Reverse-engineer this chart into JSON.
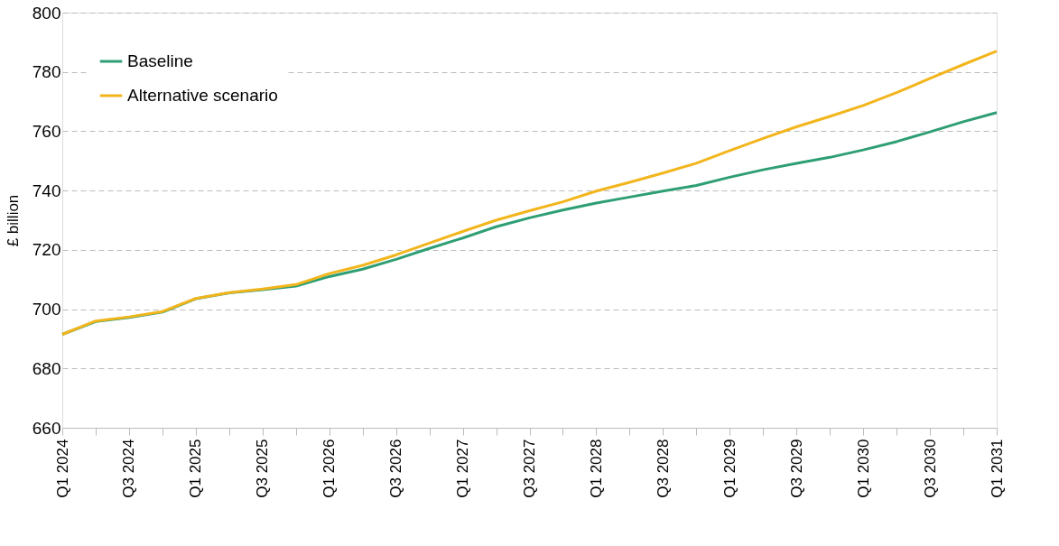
{
  "chart_data": {
    "type": "line",
    "ylabel": "£ billion",
    "categories": [
      "Q1 2024",
      null,
      "Q3 2024",
      null,
      "Q1 2025",
      null,
      "Q3 2025",
      null,
      "Q1 2026",
      null,
      "Q3 2026",
      null,
      "Q1 2027",
      null,
      "Q3 2027",
      null,
      "Q1 2028",
      null,
      "Q3 2028",
      null,
      "Q1 2029",
      null,
      "Q3 2029",
      null,
      "Q1 2030",
      null,
      "Q3 2030",
      null,
      "Q1 2031"
    ],
    "series": [
      {
        "name": "Baseline",
        "color": "#2e9e74",
        "values": [
          691.5,
          695.8,
          697.2,
          699.0,
          703.5,
          705.5,
          706.6,
          707.8,
          711.0,
          713.5,
          716.8,
          720.5,
          724.0,
          727.8,
          730.8,
          733.4,
          735.8,
          737.8,
          739.8,
          741.7,
          744.5,
          747.0,
          749.2,
          751.2,
          753.7,
          756.5,
          759.8,
          763.2,
          766.3
        ]
      },
      {
        "name": "Alternative scenario",
        "color": "#f2b51c",
        "values": [
          691.5,
          696.0,
          697.4,
          699.2,
          703.6,
          705.6,
          706.8,
          708.3,
          712.0,
          714.8,
          718.3,
          722.3,
          726.2,
          730.0,
          733.2,
          736.2,
          739.8,
          742.8,
          745.9,
          749.2,
          753.5,
          757.6,
          761.5,
          765.0,
          768.7,
          773.0,
          777.8,
          782.5,
          787.0
        ]
      }
    ],
    "ylim": [
      660,
      800
    ],
    "yticks": [
      660,
      680,
      700,
      720,
      740,
      760,
      780,
      800
    ],
    "grid": "y",
    "legend": "top left",
    "marker": "none",
    "line_style": "solid"
  }
}
